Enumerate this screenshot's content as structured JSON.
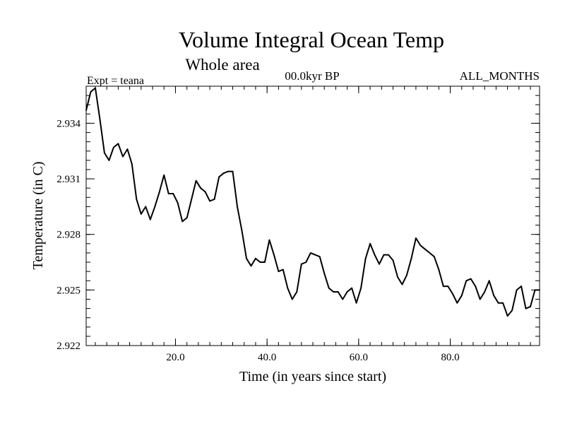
{
  "chart_data": {
    "type": "line",
    "title": "Volume Integral Ocean Temp",
    "subtitle": "Whole area",
    "experiment_label": "Expt = teana",
    "period_label": "00.0kyr BP",
    "months_label": "ALL_MONTHS",
    "xlabel": "Time (in years since start)",
    "ylabel": "Temperature (in C)",
    "xlim": [
      0.5,
      99.5
    ],
    "ylim": [
      2.922,
      2.936
    ],
    "xticks": [
      20,
      40,
      60,
      80
    ],
    "xtick_labels": [
      "20.0",
      "40.0",
      "60.0",
      "80.0"
    ],
    "yticks": [
      2.922,
      2.925,
      2.928,
      2.931,
      2.934
    ],
    "ytick_labels": [
      "2.922",
      "2.925",
      "2.928",
      "2.931",
      "2.934"
    ],
    "grid": false,
    "series": [
      {
        "name": "Volume Integral Ocean Temp",
        "color": "#000000",
        "x": [
          0.5,
          1.5,
          2.5,
          3.5,
          4.5,
          5.5,
          6.5,
          7.5,
          8.5,
          9.5,
          10.5,
          11.5,
          12.5,
          13.5,
          14.5,
          15.5,
          16.5,
          17.5,
          18.5,
          19.5,
          20.5,
          21.5,
          22.5,
          23.5,
          24.5,
          25.5,
          26.5,
          27.5,
          28.5,
          29.5,
          30.5,
          31.5,
          32.5,
          33.5,
          34.5,
          35.5,
          36.5,
          37.5,
          38.5,
          39.5,
          40.5,
          41.5,
          42.5,
          43.5,
          44.5,
          45.5,
          46.5,
          47.5,
          48.5,
          49.5,
          50.5,
          51.5,
          52.5,
          53.5,
          54.5,
          55.5,
          56.5,
          57.5,
          58.5,
          59.5,
          60.5,
          61.5,
          62.5,
          63.5,
          64.5,
          65.5,
          66.5,
          67.5,
          68.5,
          69.5,
          70.5,
          71.5,
          72.5,
          73.5,
          74.5,
          75.5,
          76.5,
          77.5,
          78.5,
          79.5,
          80.5,
          81.5,
          82.5,
          83.5,
          84.5,
          85.5,
          86.5,
          87.5,
          88.5,
          89.5,
          90.5,
          91.5,
          92.5,
          93.5,
          94.5,
          95.5,
          96.5,
          97.5,
          98.5,
          99.5
        ],
        "y": [
          2.9347,
          2.9357,
          2.9359,
          2.9342,
          2.9324,
          2.932,
          2.9327,
          2.9329,
          2.9322,
          2.9326,
          2.9318,
          2.9299,
          2.9291,
          2.9295,
          2.9288,
          2.9295,
          2.9303,
          2.9312,
          2.9302,
          2.9302,
          2.9297,
          2.9287,
          2.9289,
          2.9299,
          2.9309,
          2.9305,
          2.9303,
          2.9298,
          2.9299,
          2.9311,
          2.9313,
          2.9314,
          2.9314,
          2.9295,
          2.9282,
          2.9267,
          2.9263,
          2.9267,
          2.9265,
          2.9265,
          2.9277,
          2.9269,
          2.926,
          2.9261,
          2.9251,
          2.9245,
          2.9249,
          2.9264,
          2.9265,
          2.927,
          2.9269,
          2.9268,
          2.9259,
          2.9251,
          2.9249,
          2.9249,
          2.9245,
          2.9249,
          2.9251,
          2.9243,
          2.9251,
          2.9267,
          2.9275,
          2.9269,
          2.9264,
          2.9269,
          2.9269,
          2.9266,
          2.9257,
          2.9253,
          2.9258,
          2.9267,
          2.9278,
          2.9274,
          2.9272,
          2.927,
          2.9268,
          2.9261,
          2.9252,
          2.9252,
          2.9248,
          2.9243,
          2.9247,
          2.9255,
          2.9256,
          2.9252,
          2.9245,
          2.9249,
          2.9255,
          2.9247,
          2.9243,
          2.9243,
          2.9236,
          2.9239,
          2.925,
          2.9252,
          2.924,
          2.9241,
          2.925,
          2.925
        ]
      }
    ]
  }
}
